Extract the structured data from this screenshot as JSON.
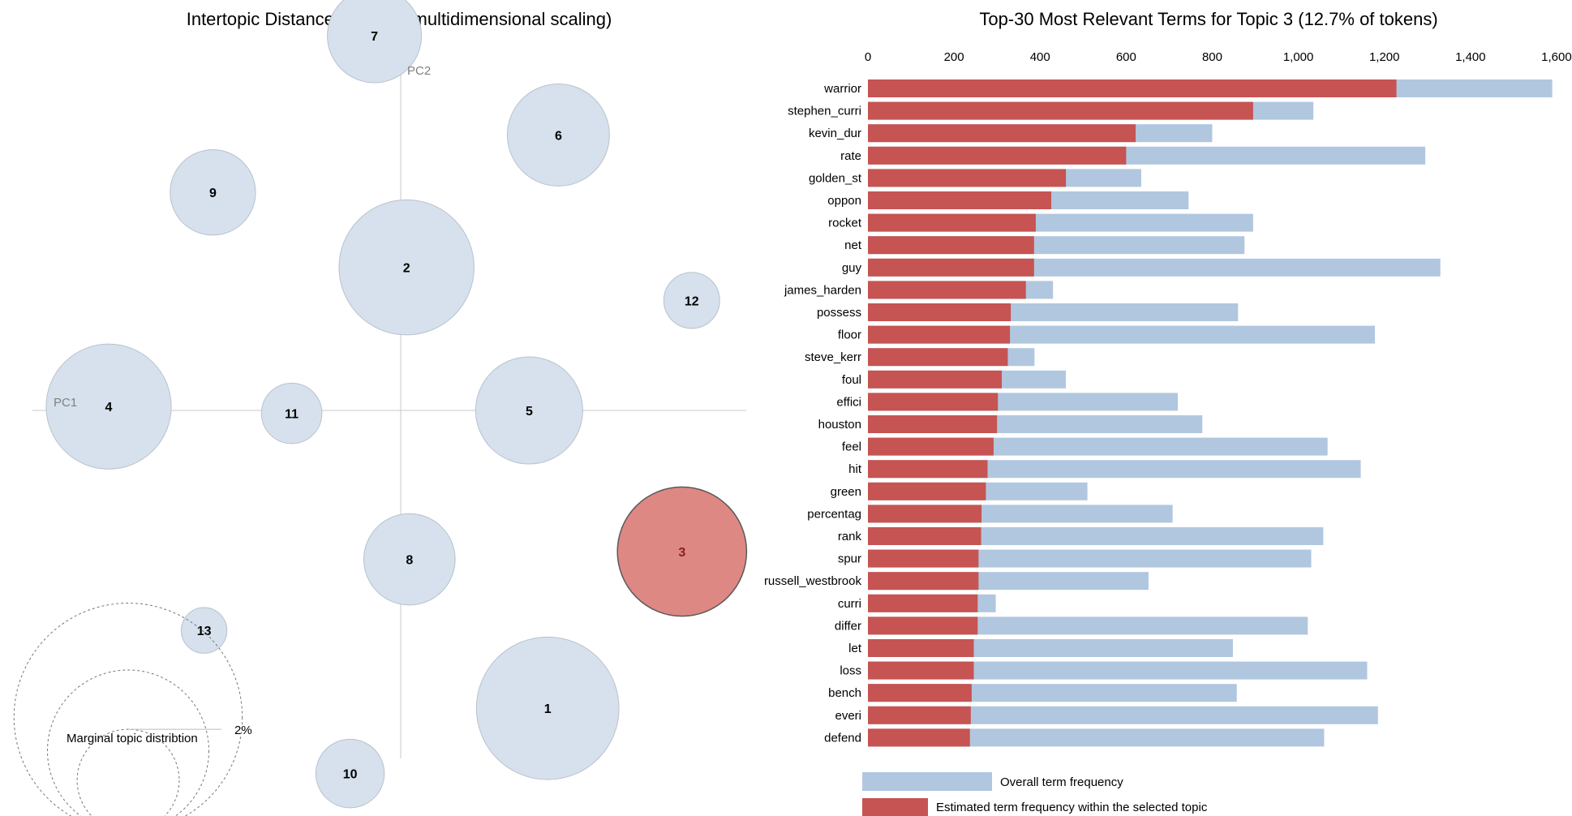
{
  "colors": {
    "bubble_fill": "#d6e1ed",
    "bubble_stroke": "#b9c2cc",
    "selected_fill": "#de8883",
    "selected_stroke": "#5a5a5a",
    "overall_bar": "#b1c7df",
    "topic_bar": "#c65452",
    "axis_line": "#c8c8c8"
  },
  "chart_data": [
    {
      "type": "scatter",
      "title": "Intertopic Distance Map (via multidimensional scaling)",
      "xlabel": "PC1",
      "ylabel": "PC2",
      "selected_topic": "3",
      "topics": [
        {
          "label": "1",
          "pc1": 0.151,
          "pc2": -0.306,
          "size_pct": 3.9
        },
        {
          "label": "2",
          "pc1": 0.006,
          "pc2": 0.147,
          "size_pct": 3.5
        },
        {
          "label": "3",
          "pc1": 0.289,
          "pc2": -0.145,
          "size_pct": 3.2
        },
        {
          "label": "4",
          "pc1": -0.3,
          "pc2": 0.004,
          "size_pct": 3.0
        },
        {
          "label": "5",
          "pc1": 0.132,
          "pc2": 0.0,
          "size_pct": 2.2
        },
        {
          "label": "6",
          "pc1": 0.162,
          "pc2": 0.283,
          "size_pct": 2.0
        },
        {
          "label": "7",
          "pc1": -0.027,
          "pc2": 0.385,
          "size_pct": 1.7
        },
        {
          "label": "8",
          "pc1": 0.009,
          "pc2": -0.153,
          "size_pct": 1.6
        },
        {
          "label": "9",
          "pc1": -0.193,
          "pc2": 0.224,
          "size_pct": 1.4
        },
        {
          "label": "10",
          "pc1": -0.052,
          "pc2": -0.373,
          "size_pct": 0.9
        },
        {
          "label": "11",
          "pc1": -0.112,
          "pc2": -0.003,
          "size_pct": 0.7
        },
        {
          "label": "12",
          "pc1": 0.299,
          "pc2": 0.113,
          "size_pct": 0.6
        },
        {
          "label": "13",
          "pc1": -0.202,
          "pc2": -0.226,
          "size_pct": 0.4
        }
      ],
      "marginal": {
        "title": "Marginal topic distribtion",
        "labels": [
          {
            "pct": 2,
            "text": "2%"
          }
        ]
      }
    },
    {
      "type": "bar",
      "title": "Top-30 Most Relevant Terms for Topic 3 (12.7% of tokens)",
      "xlim": [
        0,
        1600
      ],
      "xticks": [
        "0",
        "200",
        "400",
        "600",
        "800",
        "1,000",
        "1,200",
        "1,400",
        "1,600"
      ],
      "categories": [
        "warrior",
        "stephen_curri",
        "kevin_dur",
        "rate",
        "golden_st",
        "oppon",
        "rocket",
        "net",
        "guy",
        "james_harden",
        "possess",
        "floor",
        "steve_kerr",
        "foul",
        "effici",
        "houston",
        "feel",
        "hit",
        "green",
        "percentag",
        "rank",
        "spur",
        "russell_westbrook",
        "curri",
        "differ",
        "let",
        "loss",
        "bench",
        "everi",
        "defend"
      ],
      "series": [
        {
          "name": "Overall term frequency",
          "values": [
            1590,
            1035,
            800,
            1295,
            635,
            745,
            895,
            875,
            1330,
            430,
            860,
            1178,
            387,
            460,
            720,
            777,
            1068,
            1145,
            510,
            708,
            1058,
            1030,
            652,
            297,
            1022,
            848,
            1160,
            857,
            1185,
            1060
          ]
        },
        {
          "name": "Estimated term frequency within the selected topic",
          "values": [
            1228,
            895,
            622,
            600,
            460,
            426,
            390,
            386,
            386,
            367,
            332,
            330,
            325,
            311,
            302,
            300,
            292,
            278,
            274,
            264,
            263,
            257,
            257,
            255,
            255,
            246,
            246,
            241,
            239,
            237
          ]
        }
      ]
    }
  ]
}
